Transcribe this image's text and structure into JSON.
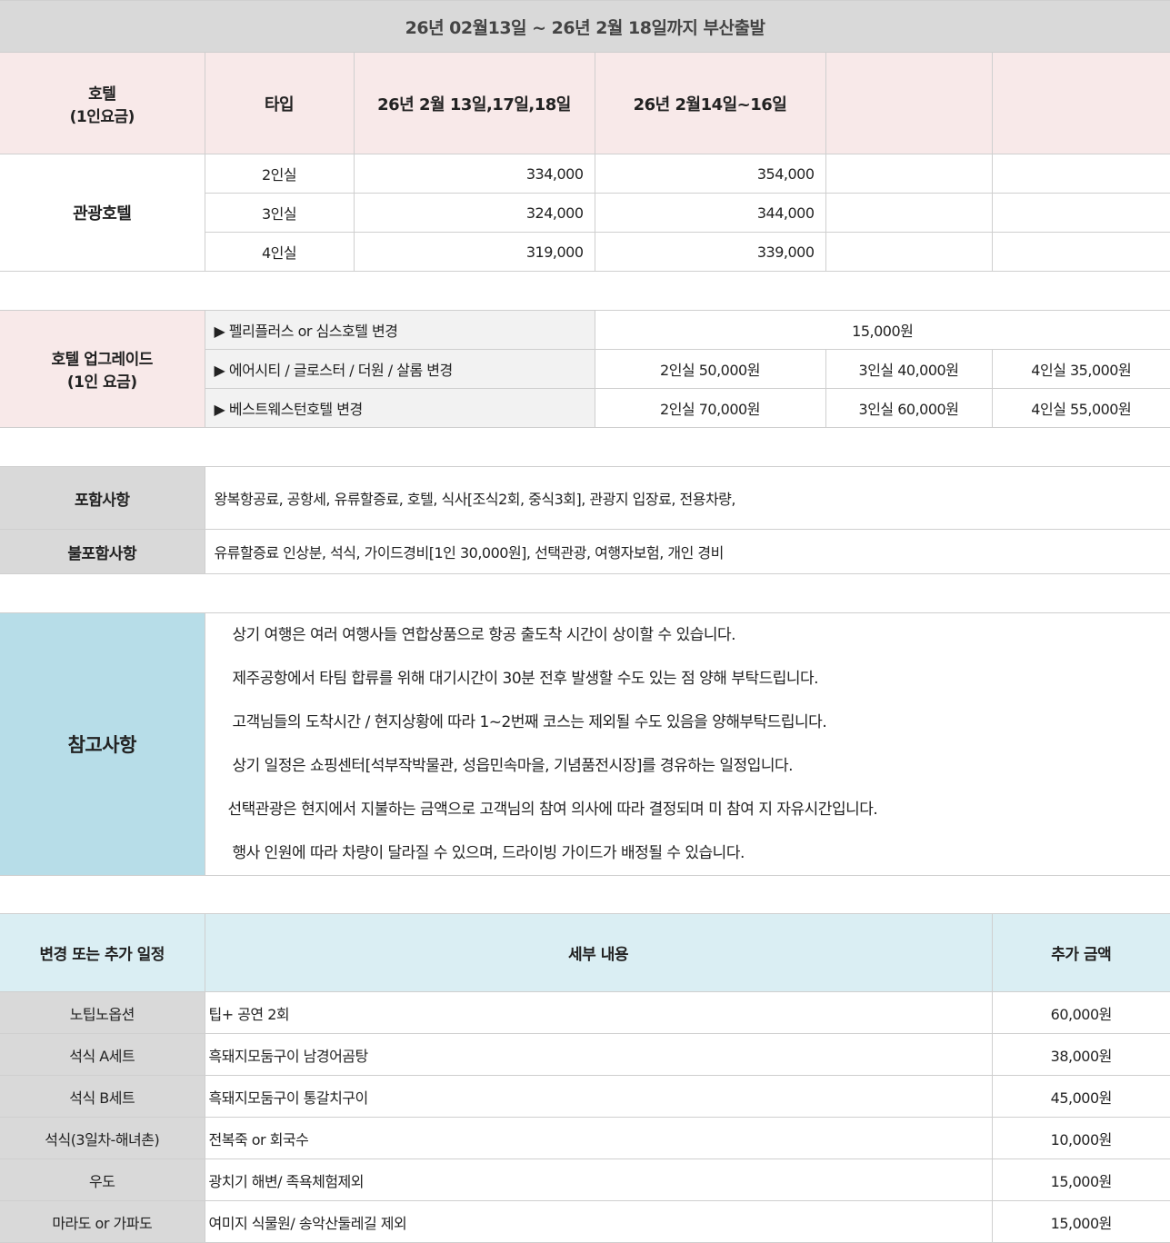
{
  "price_table": {
    "title": "26년 02월13일 ~ 26년 2월 18일까지 부산출발",
    "headers": [
      "호텔\n(1인요금)",
      "타입",
      "26년 2월 13일,17일,18일",
      "26년 2월14일~16일",
      "",
      ""
    ],
    "hotel": "관광호텔",
    "rows": [
      {
        "type": "2인실",
        "p1": "334,000",
        "p2": "354,000"
      },
      {
        "type": "3인실",
        "p1": "324,000",
        "p2": "344,000"
      },
      {
        "type": "4인실",
        "p1": "319,000",
        "p2": "339,000"
      }
    ]
  },
  "upgrade": {
    "label": "호텔 업그레이드\n(1인 요금)",
    "rows": [
      {
        "name": "▶ 펠리플러스 or 심스호텔 변경",
        "all": "15,000원"
      },
      {
        "name": "▶ 에어시티 / 글로스터 / 더원 / 살롬 변경",
        "v2": "2인실 50,000원",
        "v3": "3인실 40,000원",
        "v4": "4인실 35,000원"
      },
      {
        "name": "▶ 베스트웨스턴호텔 변경",
        "v2": "2인실 70,000원",
        "v3": "3인실 60,000원",
        "v4": "4인실 55,000원"
      }
    ]
  },
  "inclusions": {
    "included_label": "포함사항",
    "included": "왕복항공료, 공항세, 유류할증료, 호텔, 식사[조식2회, 중식3회], 관광지 입장료, 전용차량,",
    "excluded_label": "불포함사항",
    "excluded": "유류할증료 인상분, 석식, 가이드경비[1인 30,000원], 선택관광, 여행자보험, 개인 경비"
  },
  "notes": {
    "label": "참고사항",
    "items": [
      "상기 여행은 여러 여행사들 연합상품으로 항공 출도착 시간이 상이할 수 있습니다.",
      "제주공항에서 타팀 합류를 위해 대기시간이 30분 전후 발생할 수도 있는 점 양해 부탁드립니다.",
      "고객님들의 도착시간 / 현지상황에 따라 1~2번째 코스는 제외될 수도 있음을 양해부탁드립니다.",
      "상기 일정은 쇼핑센터[석부작박물관, 성읍민속마을, 기념품전시장]를 경유하는 일정입니다.",
      "선택관광은 현지에서 지불하는 금액으로 고객님의 참여 의사에 따라 결정되며 미 참여 지 자유시간입니다.",
      "행사 인원에 따라 차량이 달라질 수 있으며, 드라이빙 가이드가 배정될 수 있습니다."
    ]
  },
  "options": {
    "headers": [
      "변경 또는 추가 일정",
      "세부 내용",
      "추가 금액"
    ],
    "rows": [
      {
        "name": "노팁노옵션",
        "detail": "팁+ 공연 2회",
        "price": "60,000원"
      },
      {
        "name": "석식 A세트",
        "detail": "흑돼지모둠구이 남경어곰탕",
        "price": "38,000원"
      },
      {
        "name": "석식 B세트",
        "detail": "흑돼지모둠구이 통갈치구이",
        "price": "45,000원"
      },
      {
        "name": "석식(3일차-해녀촌)",
        "detail": "전복죽 or 회국수",
        "price": "10,000원"
      },
      {
        "name": "우도",
        "detail": "광치기 해변/ 족욕체험제외",
        "price": "15,000원"
      },
      {
        "name": "마라도 or 가파도",
        "detail": "여미지 식물원/ 송악산둘레길 제외",
        "price": "15,000원"
      }
    ]
  }
}
